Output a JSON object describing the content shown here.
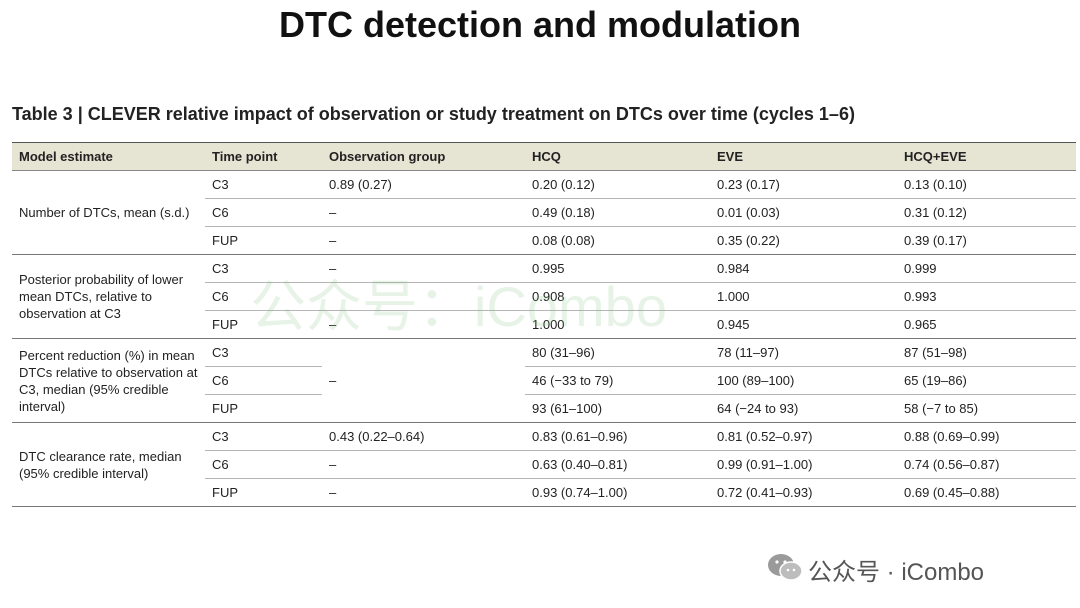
{
  "header": {
    "title": "DTC detection and modulation"
  },
  "table": {
    "caption": "Table 3 | CLEVER relative impact of observation or study treatment on DTCs over time (cycles 1–6)",
    "columns": [
      "Model estimate",
      "Time point",
      "Observation group",
      "HCQ",
      "EVE",
      "HCQ+EVE"
    ],
    "groups": [
      {
        "label": "Number of DTCs, mean (s.d.)",
        "rows": [
          {
            "time": "C3",
            "observation": "0.89 (0.27)",
            "values": [
              "0.20 (0.12)",
              "0.23 (0.17)",
              "0.13 (0.10)"
            ]
          },
          {
            "time": "C6",
            "observation": "–",
            "values": [
              "0.49 (0.18)",
              "0.01 (0.03)",
              "0.31 (0.12)"
            ]
          },
          {
            "time": "FUP",
            "observation": "–",
            "values": [
              "0.08 (0.08)",
              "0.35 (0.22)",
              "0.39 (0.17)"
            ]
          }
        ]
      },
      {
        "label": "Posterior probability of lower mean DTCs, relative to observation at C3",
        "rows": [
          {
            "time": "C3",
            "observation": "–",
            "values": [
              "0.995",
              "0.984",
              "0.999"
            ]
          },
          {
            "time": "C6",
            "values": [
              "0.908",
              "1.000",
              "0.993"
            ]
          },
          {
            "time": "FUP",
            "observation": "–",
            "values": [
              "1.000",
              "0.945",
              "0.965"
            ]
          }
        ]
      },
      {
        "label": "Percent reduction (%) in mean DTCs relative to observation at C3, median (95% credible interval)",
        "observation": "–",
        "rows": [
          {
            "time": "C3",
            "values": [
              "80 (31–96)",
              "78 (11–97)",
              "87 (51–98)"
            ]
          },
          {
            "time": "C6",
            "values": [
              "46 (−33 to 79)",
              "100 (89–100)",
              "65 (19–86)"
            ]
          },
          {
            "time": "FUP",
            "values": [
              "93 (61–100)",
              "64 (−24 to 93)",
              "58 (−7 to 85)"
            ]
          }
        ]
      },
      {
        "label": "DTC clearance rate, median (95% credible interval)",
        "rows": [
          {
            "time": "C3",
            "observation": "0.43 (0.22–0.64)",
            "values": [
              "0.83 (0.61–0.96)",
              "0.81 (0.52–0.97)",
              "0.88 (0.69–0.99)"
            ]
          },
          {
            "time": "C6",
            "observation": "–",
            "values": [
              "0.63 (0.40–0.81)",
              "0.99 (0.91–1.00)",
              "0.74 (0.56–0.87)"
            ]
          },
          {
            "time": "FUP",
            "observation": "–",
            "values": [
              "0.93 (0.74–1.00)",
              "0.72 (0.41–0.93)",
              "0.69 (0.45–0.88)"
            ]
          }
        ]
      }
    ]
  },
  "watermark": "公众号：iCombo",
  "footer": {
    "brand": "公众号 · iCombo"
  }
}
